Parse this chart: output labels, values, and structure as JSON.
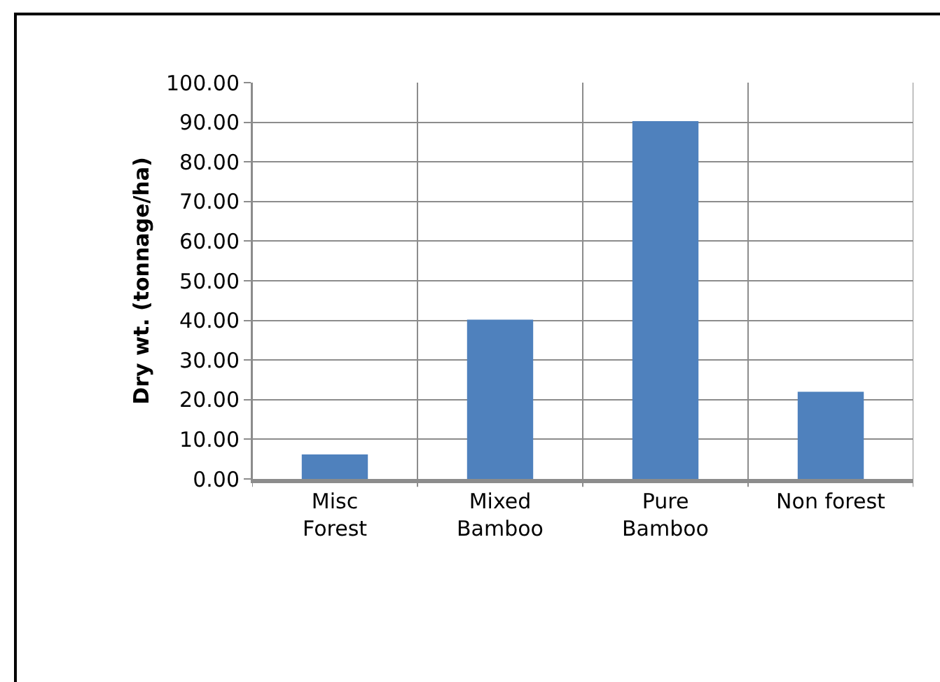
{
  "chart_data": {
    "type": "bar",
    "ylabel": "Dry wt. (tonnage/ha)",
    "categories": [
      "Misc Forest",
      "Mixed Bamboo",
      "Pure Bamboo",
      "Non forest"
    ],
    "values": [
      6.2,
      40.2,
      90.3,
      22.0
    ],
    "color": "#4f81bd",
    "ylim": [
      0,
      100
    ],
    "yticks": [
      {
        "value": 0,
        "label": "0.00"
      },
      {
        "value": 10,
        "label": "10.00"
      },
      {
        "value": 20,
        "label": "20.00"
      },
      {
        "value": 30,
        "label": "30.00"
      },
      {
        "value": 40,
        "label": "40.00"
      },
      {
        "value": 50,
        "label": "50.00"
      },
      {
        "value": 60,
        "label": "60.00"
      },
      {
        "value": 70,
        "label": "70.00"
      },
      {
        "value": 80,
        "label": "80.00"
      },
      {
        "value": 90,
        "label": "90.00"
      },
      {
        "value": 100,
        "label": "100.00"
      }
    ],
    "grid": true
  }
}
